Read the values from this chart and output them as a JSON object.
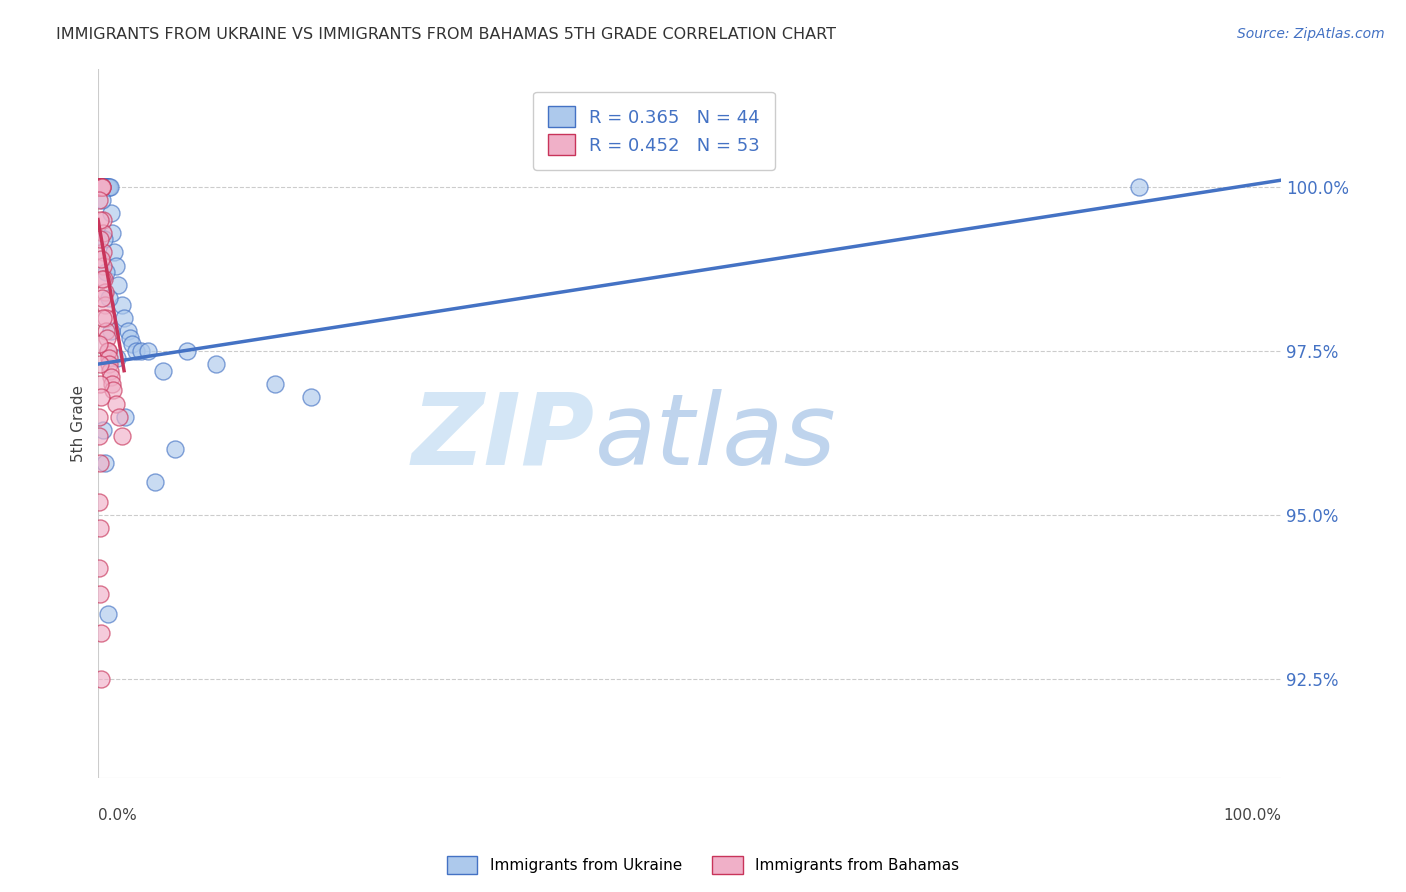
{
  "title": "IMMIGRANTS FROM UKRAINE VS IMMIGRANTS FROM BAHAMAS 5TH GRADE CORRELATION CHART",
  "source": "Source: ZipAtlas.com",
  "ylabel": "5th Grade",
  "xlim": [
    0.0,
    100.0
  ],
  "ylim": [
    91.0,
    101.8
  ],
  "y_ticks": [
    92.5,
    95.0,
    97.5,
    100.0
  ],
  "y_tick_labels": [
    "92.5%",
    "95.0%",
    "97.5%",
    "100.0%"
  ],
  "ukraine_color": "#adc9ec",
  "bahamas_color": "#f0b0c8",
  "ukraine_edge_color": "#4472c4",
  "bahamas_edge_color": "#c8345a",
  "ukraine_line_color": "#4472c4",
  "bahamas_line_color": "#c8345a",
  "watermark_zip": "ZIP",
  "watermark_atlas": "atlas",
  "legend_label_ukraine": "Immigrants from Ukraine",
  "legend_label_bahamas": "Immigrants from Bahamas",
  "legend_r_ukraine": "R = 0.365",
  "legend_n_ukraine": "N = 44",
  "legend_r_bahamas": "R = 0.452",
  "legend_n_bahamas": "N = 53",
  "ukraine_trend_x0": 0.0,
  "ukraine_trend_y0": 97.3,
  "ukraine_trend_x1": 100.0,
  "ukraine_trend_y1": 100.1,
  "bahamas_trend_x0": 0.0,
  "bahamas_trend_y0": 99.5,
  "bahamas_trend_x1": 2.2,
  "bahamas_trend_y1": 97.2,
  "ukraine_x": [
    0.15,
    0.25,
    0.35,
    0.45,
    0.5,
    0.55,
    0.6,
    0.65,
    0.7,
    0.75,
    0.85,
    0.9,
    1.0,
    1.1,
    1.2,
    1.35,
    1.5,
    1.7,
    2.0,
    2.2,
    2.5,
    2.7,
    2.9,
    3.2,
    3.6,
    4.2,
    5.5,
    7.5,
    10.0,
    15.0,
    18.0,
    0.3,
    0.5,
    0.7,
    0.9,
    1.1,
    1.6,
    2.3,
    4.8,
    6.5,
    88.0,
    0.4,
    0.6,
    0.8
  ],
  "ukraine_y": [
    100.0,
    100.0,
    100.0,
    100.0,
    100.0,
    100.0,
    100.0,
    100.0,
    100.0,
    100.0,
    100.0,
    100.0,
    100.0,
    99.6,
    99.3,
    99.0,
    98.8,
    98.5,
    98.2,
    98.0,
    97.8,
    97.7,
    97.6,
    97.5,
    97.5,
    97.5,
    97.2,
    97.5,
    97.3,
    97.0,
    96.8,
    99.8,
    99.2,
    98.7,
    98.3,
    97.8,
    97.4,
    96.5,
    95.5,
    96.0,
    100.0,
    96.3,
    95.8,
    93.5
  ],
  "bahamas_x": [
    0.05,
    0.1,
    0.12,
    0.15,
    0.18,
    0.2,
    0.22,
    0.25,
    0.28,
    0.3,
    0.32,
    0.35,
    0.38,
    0.4,
    0.42,
    0.45,
    0.5,
    0.55,
    0.6,
    0.65,
    0.7,
    0.75,
    0.8,
    0.85,
    0.9,
    0.95,
    1.0,
    1.1,
    1.2,
    1.3,
    1.5,
    1.8,
    2.0,
    0.1,
    0.15,
    0.2,
    0.25,
    0.3,
    0.35,
    0.4,
    0.1,
    0.15,
    0.2,
    0.25,
    0.08,
    0.12,
    0.18,
    0.1,
    0.15,
    0.12,
    0.18,
    0.22,
    0.28
  ],
  "bahamas_y": [
    100.0,
    100.0,
    100.0,
    100.0,
    100.0,
    100.0,
    100.0,
    100.0,
    100.0,
    100.0,
    100.0,
    100.0,
    99.5,
    99.3,
    99.0,
    98.8,
    98.6,
    98.4,
    98.2,
    98.0,
    97.8,
    97.7,
    97.5,
    97.5,
    97.4,
    97.3,
    97.2,
    97.1,
    97.0,
    96.9,
    96.7,
    96.5,
    96.2,
    99.8,
    99.5,
    99.2,
    98.9,
    98.6,
    98.3,
    98.0,
    97.6,
    97.3,
    97.0,
    96.8,
    96.5,
    96.2,
    95.8,
    95.2,
    94.8,
    94.2,
    93.8,
    93.2,
    92.5
  ]
}
